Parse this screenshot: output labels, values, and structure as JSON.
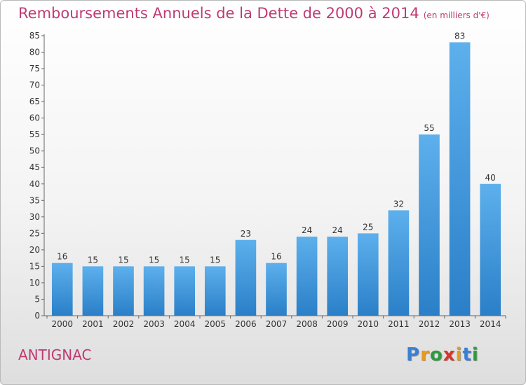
{
  "chart_data": {
    "type": "bar",
    "title": "Remboursements Annuels de la Dette de 2000 à 2014",
    "subtitle": "(en milliers d'€)",
    "categories": [
      "2000",
      "2001",
      "2002",
      "2003",
      "2004",
      "2005",
      "2006",
      "2007",
      "2008",
      "2009",
      "2010",
      "2011",
      "2012",
      "2013",
      "2014"
    ],
    "values": [
      16,
      15,
      15,
      15,
      15,
      15,
      23,
      16,
      24,
      24,
      25,
      32,
      55,
      83,
      40
    ],
    "ylim": [
      0,
      85
    ],
    "yticks": [
      0,
      5,
      10,
      15,
      20,
      25,
      30,
      35,
      40,
      45,
      50,
      55,
      60,
      65,
      70,
      75,
      80,
      85
    ],
    "grid": false,
    "bar_color": "#4a9fe0",
    "data_labels": true
  },
  "footer": {
    "commune": "ANTIGNAC",
    "logo_text": "Proxiti"
  },
  "colors": {
    "title": "#bf3a73",
    "logo": [
      "#3b7fd4",
      "#e89a1c",
      "#2e9a3e",
      "#d8342b",
      "#e89a1c",
      "#3b7fd4",
      "#2e9a3e"
    ]
  }
}
